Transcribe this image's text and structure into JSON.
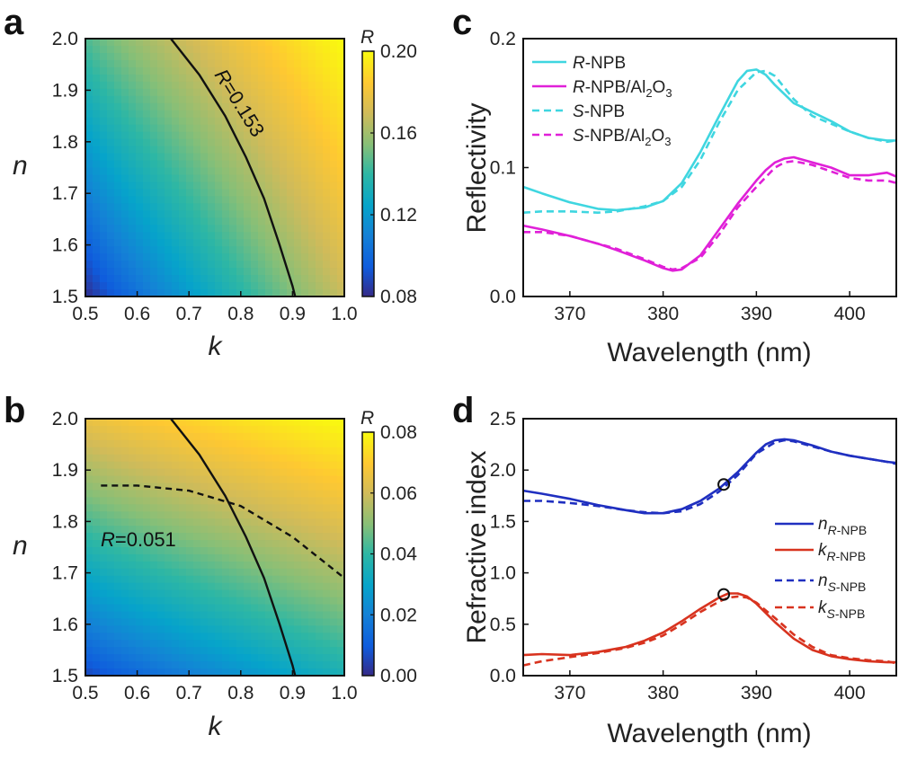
{
  "chart_data": [
    {
      "id": "a",
      "panel_label": "a",
      "type": "heatmap",
      "title": "",
      "xlabel": "k",
      "ylabel": "n",
      "xlim": [
        0.5,
        1.0
      ],
      "ylim": [
        1.5,
        2.0
      ],
      "xticks": [
        "0.5",
        "0.6",
        "0.7",
        "0.8",
        "0.9",
        "1.0"
      ],
      "yticks": [
        "1.5",
        "1.6",
        "1.7",
        "1.8",
        "1.9",
        "2.0"
      ],
      "colorbar": {
        "label": "R",
        "range": [
          0.08,
          0.2
        ],
        "ticks": [
          "0.08",
          "0.12",
          "0.16",
          "0.20"
        ],
        "colormap": "parula"
      },
      "field": {
        "corner_values": {
          "k0.5_n1.5": 0.08,
          "k1.0_n1.5": 0.168,
          "k0.5_n2.0": 0.145,
          "k1.0_n2.0": 0.2
        }
      },
      "contours": [
        {
          "label": "R=0.153",
          "style": "solid",
          "points": [
            [
              0.665,
              2.0
            ],
            [
              0.72,
              1.93
            ],
            [
              0.77,
              1.85
            ],
            [
              0.81,
              1.77
            ],
            [
              0.845,
              1.69
            ],
            [
              0.875,
              1.6
            ],
            [
              0.9,
              1.52
            ],
            [
              0.905,
              1.5
            ]
          ]
        }
      ]
    },
    {
      "id": "b",
      "panel_label": "b",
      "type": "heatmap",
      "title": "",
      "xlabel": "k",
      "ylabel": "n",
      "xlim": [
        0.5,
        1.0
      ],
      "ylim": [
        1.5,
        2.0
      ],
      "xticks": [
        "0.5",
        "0.6",
        "0.7",
        "0.8",
        "0.9",
        "1.0"
      ],
      "yticks": [
        "1.5",
        "1.6",
        "1.7",
        "1.8",
        "1.9",
        "2.0"
      ],
      "colorbar": {
        "label": "R",
        "range": [
          0.0,
          0.08
        ],
        "ticks": [
          "0.00",
          "0.02",
          "0.04",
          "0.06",
          "0.08"
        ],
        "colormap": "parula"
      },
      "field": {
        "corner_values": {
          "k0.5_n1.5": 0.005,
          "k1.0_n1.5": 0.035,
          "k0.5_n2.0": 0.065,
          "k1.0_n2.0": 0.08
        }
      },
      "contours": [
        {
          "label": "",
          "style": "solid",
          "points": [
            [
              0.665,
              2.0
            ],
            [
              0.72,
              1.93
            ],
            [
              0.77,
              1.85
            ],
            [
              0.81,
              1.77
            ],
            [
              0.845,
              1.69
            ],
            [
              0.875,
              1.6
            ],
            [
              0.9,
              1.52
            ],
            [
              0.905,
              1.5
            ]
          ]
        },
        {
          "label": "R=0.051",
          "style": "dashed",
          "points": [
            [
              0.53,
              1.87
            ],
            [
              0.6,
              1.87
            ],
            [
              0.7,
              1.86
            ],
            [
              0.8,
              1.83
            ],
            [
              0.9,
              1.77
            ],
            [
              1.0,
              1.69
            ]
          ]
        }
      ]
    },
    {
      "id": "c",
      "panel_label": "c",
      "type": "line",
      "title": "",
      "xlabel": "Wavelength (nm)",
      "ylabel": "Reflectivity",
      "xlim": [
        365,
        405
      ],
      "ylim": [
        0.0,
        0.2
      ],
      "xticks": [
        "370",
        "380",
        "390",
        "400"
      ],
      "yticks": [
        "0.0",
        "0.1",
        "0.2"
      ],
      "legend_position": "top-left",
      "series": [
        {
          "name": "R-NPB",
          "italic_prefix": "R",
          "rest": "-NPB",
          "sub": "",
          "color": "#3fd6e0",
          "dash": false,
          "x": [
            365,
            367,
            370,
            373,
            375,
            378,
            380,
            382,
            384,
            386,
            388,
            389,
            390,
            391,
            392,
            394,
            396,
            398,
            400,
            402,
            404,
            405
          ],
          "y": [
            0.085,
            0.08,
            0.073,
            0.068,
            0.067,
            0.069,
            0.074,
            0.088,
            0.112,
            0.14,
            0.167,
            0.175,
            0.176,
            0.172,
            0.164,
            0.15,
            0.143,
            0.136,
            0.128,
            0.123,
            0.121,
            0.121
          ]
        },
        {
          "name": "R-NPB/Al2O3",
          "italic_prefix": "R",
          "rest": "-NPB/Al",
          "sub": "2",
          "rest2": "O",
          "sub2": "3",
          "color": "#e020d8",
          "dash": false,
          "x": [
            365,
            367,
            370,
            373,
            375,
            378,
            380,
            381,
            382,
            384,
            386,
            388,
            390,
            391,
            392,
            393,
            394,
            396,
            398,
            400,
            402,
            404,
            405
          ],
          "y": [
            0.055,
            0.052,
            0.047,
            0.041,
            0.036,
            0.028,
            0.022,
            0.02,
            0.021,
            0.032,
            0.052,
            0.072,
            0.09,
            0.098,
            0.104,
            0.107,
            0.108,
            0.104,
            0.1,
            0.094,
            0.094,
            0.096,
            0.093
          ]
        },
        {
          "name": "S-NPB",
          "italic_prefix": "S",
          "rest": "-NPB",
          "sub": "",
          "color": "#3fd6e0",
          "dash": true,
          "x": [
            365,
            367,
            370,
            373,
            375,
            378,
            380,
            382,
            384,
            386,
            388,
            390,
            391,
            392,
            394,
            396,
            398,
            400,
            402,
            404,
            405
          ],
          "y": [
            0.065,
            0.066,
            0.066,
            0.065,
            0.066,
            0.07,
            0.074,
            0.085,
            0.106,
            0.135,
            0.16,
            0.174,
            0.175,
            0.171,
            0.153,
            0.14,
            0.134,
            0.128,
            0.123,
            0.12,
            0.121
          ]
        },
        {
          "name": "S-NPB/Al2O3",
          "italic_prefix": "S",
          "rest": "-NPB/Al",
          "sub": "2",
          "rest2": "O",
          "sub2": "3",
          "color": "#e020d8",
          "dash": true,
          "x": [
            365,
            367,
            370,
            373,
            375,
            378,
            380,
            381,
            382,
            384,
            386,
            388,
            390,
            392,
            393,
            394,
            396,
            398,
            400,
            402,
            404,
            405
          ],
          "y": [
            0.05,
            0.05,
            0.047,
            0.041,
            0.037,
            0.029,
            0.023,
            0.021,
            0.022,
            0.03,
            0.048,
            0.069,
            0.085,
            0.1,
            0.104,
            0.105,
            0.102,
            0.097,
            0.092,
            0.09,
            0.09,
            0.088
          ]
        }
      ]
    },
    {
      "id": "d",
      "panel_label": "d",
      "type": "line",
      "title": "",
      "xlabel": "Wavelength (nm)",
      "ylabel": "Refractive index",
      "xlim": [
        365,
        405
      ],
      "ylim": [
        0.0,
        2.5
      ],
      "xticks": [
        "370",
        "380",
        "390",
        "400"
      ],
      "yticks": [
        "0.0",
        "0.5",
        "1.0",
        "1.5",
        "2.0",
        "2.5"
      ],
      "legend_position": "right",
      "series": [
        {
          "name": "n R-NPB",
          "sym": "n",
          "sub": "R",
          "subrest": "-NPB",
          "color": "#1f2fc0",
          "dash": false,
          "x": [
            365,
            367,
            370,
            373,
            376,
            378,
            380,
            382,
            384,
            386,
            388,
            390,
            391,
            392,
            393,
            394,
            396,
            398,
            400,
            402,
            404,
            405
          ],
          "y": [
            1.8,
            1.77,
            1.72,
            1.66,
            1.61,
            1.58,
            1.58,
            1.62,
            1.7,
            1.82,
            1.98,
            2.17,
            2.25,
            2.29,
            2.3,
            2.29,
            2.24,
            2.18,
            2.14,
            2.11,
            2.08,
            2.07
          ]
        },
        {
          "name": "k R-NPB",
          "sym": "k",
          "sub": "R",
          "subrest": "-NPB",
          "color": "#d8331f",
          "dash": false,
          "x": [
            365,
            367,
            370,
            373,
            376,
            378,
            380,
            382,
            384,
            386,
            387,
            388,
            389,
            390,
            392,
            394,
            396,
            398,
            400,
            402,
            404,
            405
          ],
          "y": [
            0.2,
            0.21,
            0.2,
            0.23,
            0.28,
            0.34,
            0.42,
            0.53,
            0.65,
            0.76,
            0.8,
            0.8,
            0.77,
            0.7,
            0.52,
            0.36,
            0.25,
            0.19,
            0.16,
            0.14,
            0.13,
            0.13
          ]
        },
        {
          "name": "n S-NPB",
          "sym": "n",
          "sub": "S",
          "subrest": "-NPB",
          "color": "#1f2fc0",
          "dash": true,
          "x": [
            365,
            367,
            370,
            373,
            376,
            378,
            380,
            382,
            384,
            386,
            388,
            390,
            392,
            393,
            394,
            396,
            398,
            400,
            402,
            404,
            405
          ],
          "y": [
            1.7,
            1.7,
            1.68,
            1.65,
            1.61,
            1.59,
            1.58,
            1.6,
            1.67,
            1.79,
            1.95,
            2.16,
            2.27,
            2.29,
            2.28,
            2.23,
            2.18,
            2.14,
            2.11,
            2.08,
            2.06
          ]
        },
        {
          "name": "k S-NPB",
          "sym": "k",
          "sub": "S",
          "subrest": "-NPB",
          "color": "#d8331f",
          "dash": true,
          "x": [
            365,
            367,
            370,
            373,
            376,
            378,
            380,
            382,
            384,
            386,
            387,
            388,
            389,
            390,
            392,
            394,
            396,
            398,
            400,
            402,
            404,
            405
          ],
          "y": [
            0.1,
            0.14,
            0.18,
            0.22,
            0.27,
            0.32,
            0.39,
            0.5,
            0.62,
            0.72,
            0.76,
            0.77,
            0.76,
            0.71,
            0.56,
            0.4,
            0.28,
            0.2,
            0.17,
            0.15,
            0.14,
            0.12
          ]
        }
      ],
      "markers": [
        {
          "shape": "circle-open",
          "x": 386.5,
          "y": 1.86
        },
        {
          "shape": "circle-open",
          "x": 386.5,
          "y": 0.79
        }
      ]
    }
  ]
}
